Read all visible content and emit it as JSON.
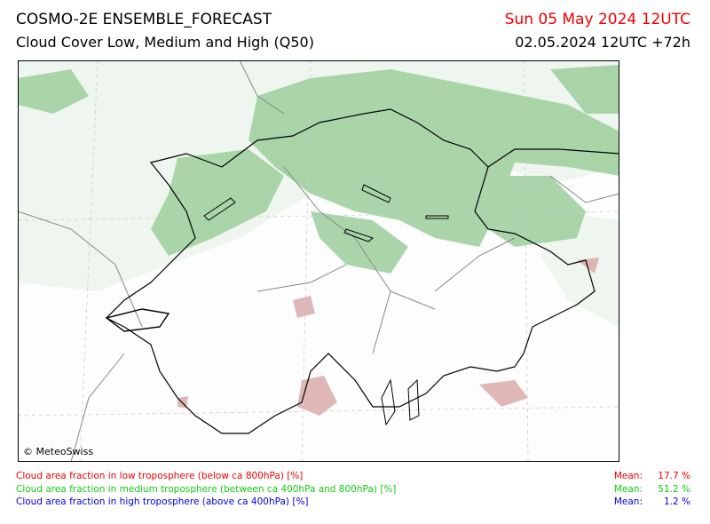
{
  "header": {
    "title": "COSMO-2E ENSEMBLE_FORECAST",
    "subtitle": "Cloud Cover Low, Medium and High (Q50)",
    "valid_time": "Sun 05 May 2024 12UTC",
    "run_time": "02.05.2024 12UTC +72h"
  },
  "map": {
    "credit": "© MeteoSwiss"
  },
  "legend": [
    {
      "label": "Cloud area fraction in low troposphere (below ca 800hPa) [%]",
      "mean_label": "Mean:",
      "mean": "17.7 %"
    },
    {
      "label": "Cloud area fraction in medium troposphere (between ca 400hPa and 800hPa) [%]",
      "mean_label": "Mean:",
      "mean": "51.2 %"
    },
    {
      "label": "Cloud area fraction in high troposphere (above ca 400hPa) [%]",
      "mean_label": "Mean:",
      "mean": "1.2 %"
    }
  ]
}
